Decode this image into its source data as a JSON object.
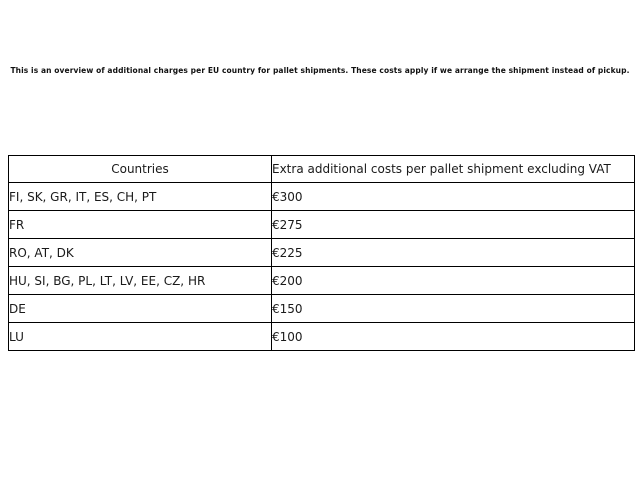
{
  "intro": {
    "text": "This is an overview of additional charges per EU country for pallet shipments. These costs apply if we arrange the shipment instead of pickup."
  },
  "table": {
    "headers": [
      "Countries",
      "Extra additional costs per pallet shipment excluding VAT"
    ],
    "rows": [
      {
        "countries": "FI, SK, GR, IT, ES, CH, PT",
        "cost": "€300"
      },
      {
        "countries": "FR",
        "cost": "€275"
      },
      {
        "countries": "RO, AT, DK",
        "cost": "€225"
      },
      {
        "countries": "HU, SI, BG, PL, LT, LV, EE, CZ, HR",
        "cost": "€200"
      },
      {
        "countries": "DE",
        "cost": "€150"
      },
      {
        "countries": "LU",
        "cost": "€100"
      }
    ]
  },
  "colors": {
    "background": "#ffffff",
    "border": "#000000",
    "text": "#1a1a1a"
  }
}
